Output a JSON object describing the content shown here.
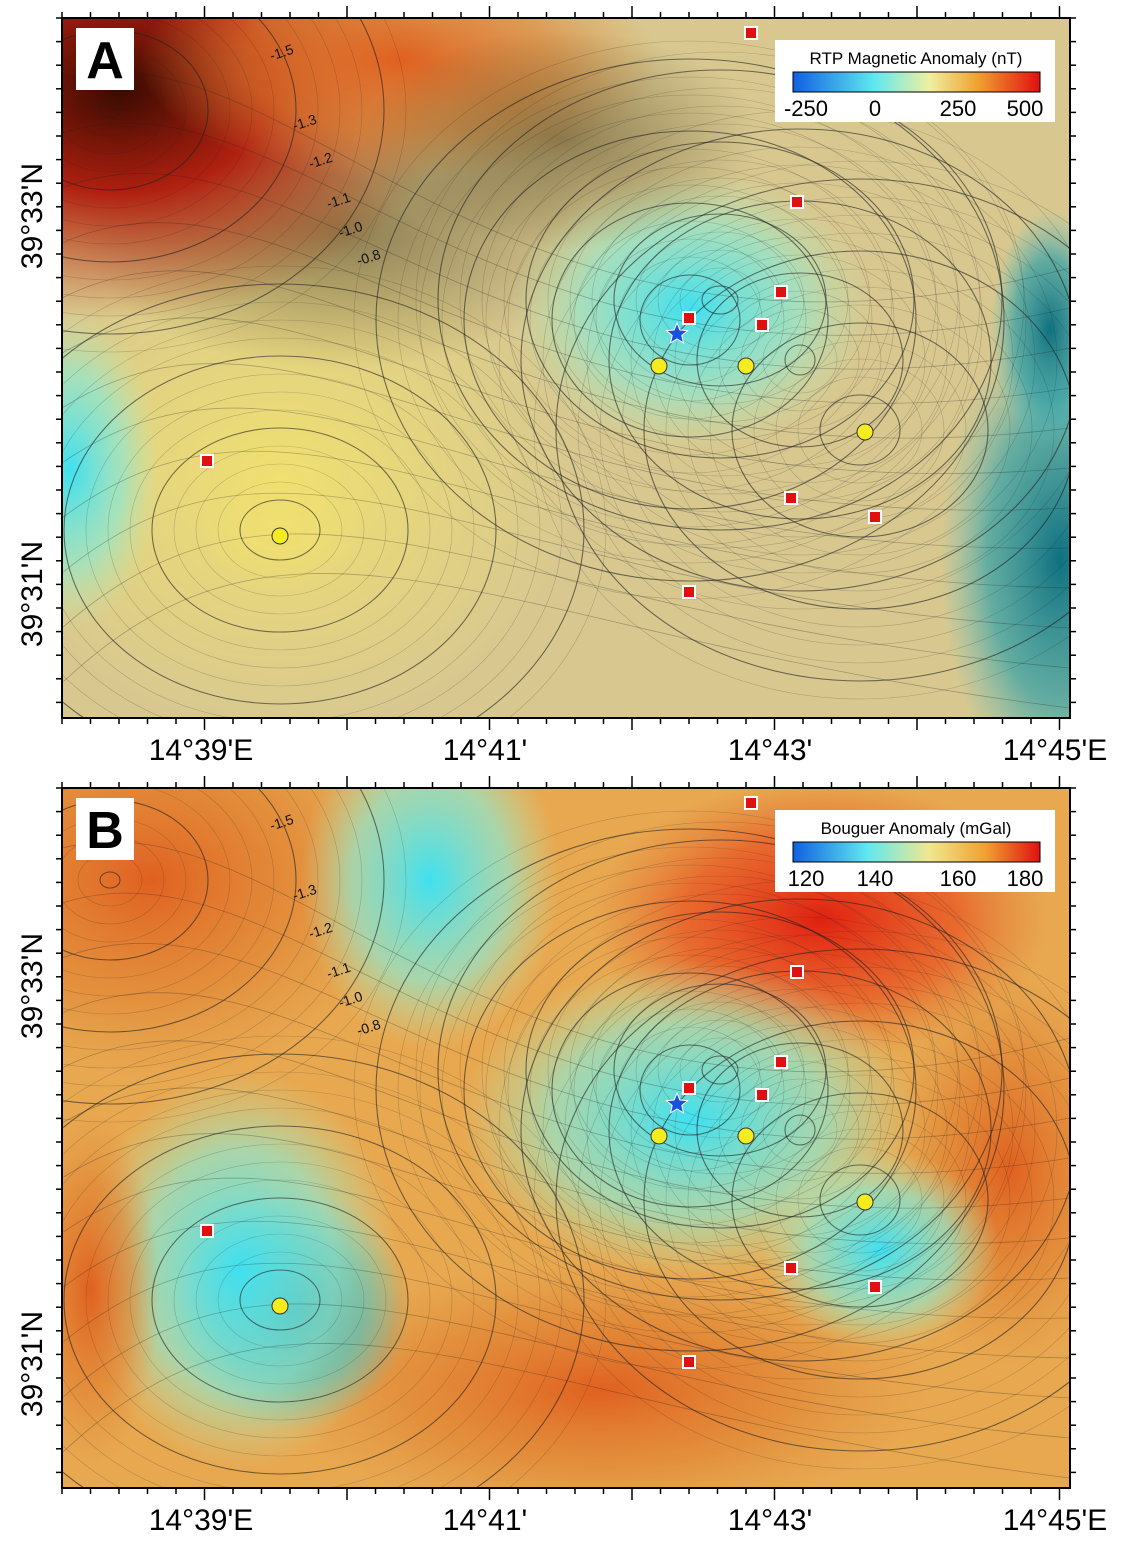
{
  "panels": [
    {
      "letter": "A",
      "legend": {
        "title": "RTP Magnetic Anomaly (nT)",
        "ticks": [
          "-250",
          "0",
          "250",
          "500"
        ]
      }
    },
    {
      "letter": "B",
      "legend": {
        "title": "Bouguer Anomaly (mGal)",
        "ticks": [
          "120",
          "140",
          "160",
          "180"
        ]
      }
    }
  ],
  "x_labels": [
    "14°39'E",
    "14°41'",
    "14°43'",
    "14°45'E"
  ],
  "y_labels": [
    "39°33'N",
    "39°31'N"
  ],
  "contour_labels": [
    "-1.5",
    "-1.3",
    "-1.2",
    "-1.1",
    "-1.0",
    "-0.8"
  ]
}
